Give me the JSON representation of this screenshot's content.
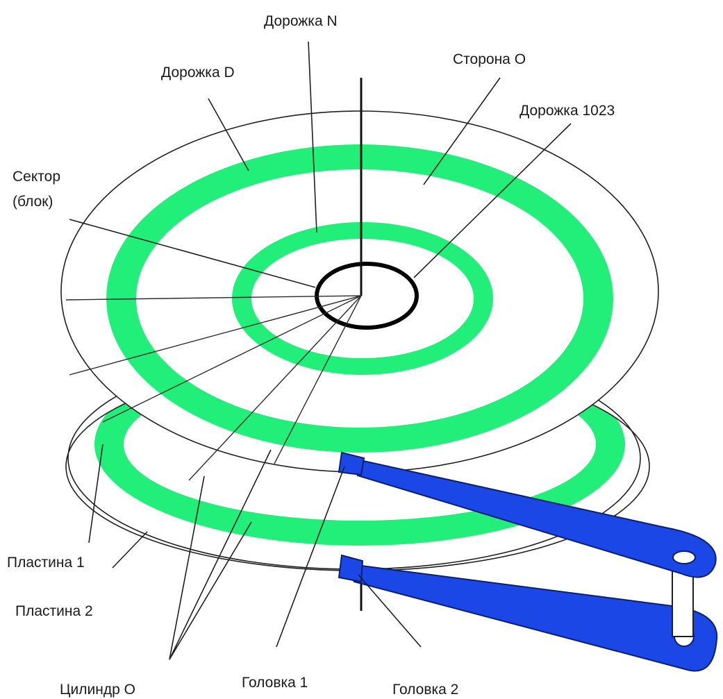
{
  "labels": {
    "track_n": "Дорожка N",
    "side_0": "Сторона О",
    "track_d": "Дорожка D",
    "track_1023": "Дорожка 1023",
    "sector_line1": "Сектор",
    "sector_line2": "(блок)",
    "platter_1": "Пластина 1",
    "platter_2": "Пластина 2",
    "cylinder_0": "Цилиндр О",
    "head_1": "Головка 1",
    "head_2": "Головка 2"
  },
  "colors": {
    "track": "#22ee7a",
    "arm": "#1a47e6",
    "outline": "#1f1f1f",
    "background": "#ffffff"
  }
}
